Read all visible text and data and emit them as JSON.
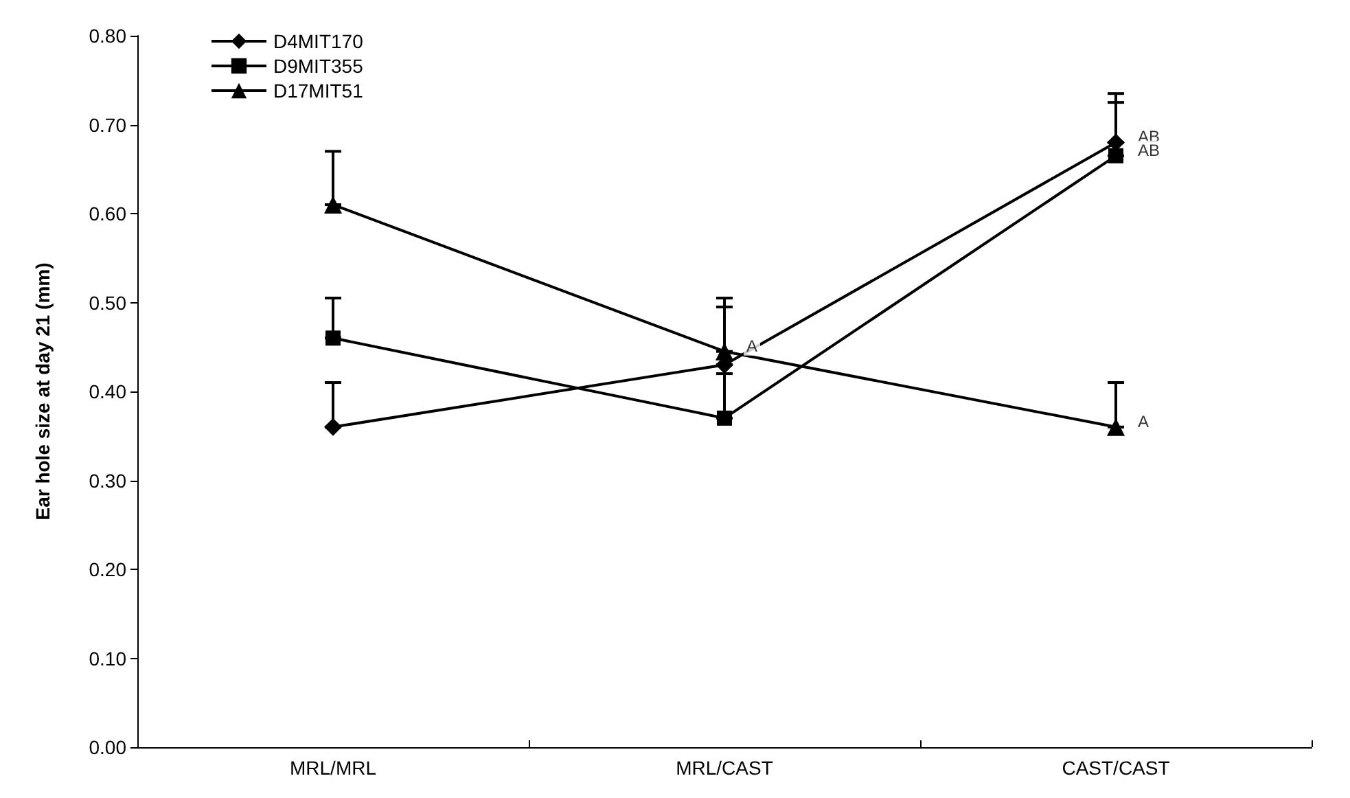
{
  "chart_data": {
    "type": "line",
    "ylabel": "Ear hole size at day 21 (mm)",
    "categories": [
      "MRL/MRL",
      "MRL/CAST",
      "CAST/CAST"
    ],
    "series": [
      {
        "name": "D4MIT170",
        "color": "#000000",
        "marker": "diamond",
        "values": [
          0.36,
          0.43,
          0.68
        ],
        "errors": [
          [
            0.36,
            0.41
          ],
          [
            0.43,
            0.495
          ],
          [
            0.68,
            0.735
          ]
        ]
      },
      {
        "name": "D9MIT355",
        "color": "#000000",
        "marker": "square",
        "values": [
          0.46,
          0.37,
          0.665
        ],
        "errors": [
          [
            0.46,
            0.505
          ],
          [
            0.37,
            0.42
          ],
          [
            0.665,
            0.725
          ]
        ]
      },
      {
        "name": "D17MIT51",
        "color": "#000000",
        "marker": "triangle",
        "values": [
          0.61,
          0.445,
          0.36
        ],
        "errors": [
          [
            0.61,
            0.67
          ],
          [
            0.445,
            0.505
          ],
          [
            0.36,
            0.41
          ]
        ]
      }
    ],
    "annotations": [
      {
        "text": "A",
        "x": "MRL/CAST",
        "y": 0.445
      },
      {
        "text": "AB",
        "x": "CAST/CAST",
        "y": 0.68
      },
      {
        "text": "AB",
        "x": "CAST/CAST",
        "y": 0.665
      },
      {
        "text": "A",
        "x": "CAST/CAST",
        "y": 0.36
      }
    ],
    "ylim": [
      0,
      0.8
    ],
    "yticks": [
      {
        "value": 0,
        "label": "0.00"
      },
      {
        "value": 0.1,
        "label": "0.10"
      },
      {
        "value": 0.2,
        "label": "0.20"
      },
      {
        "value": 0.3,
        "label": "0.30"
      },
      {
        "value": 0.4,
        "label": "0.40"
      },
      {
        "value": 0.5,
        "label": "0.50"
      },
      {
        "value": 0.6,
        "label": "0.60"
      },
      {
        "value": 0.7,
        "label": "0.70"
      },
      {
        "value": 0.8,
        "label": "0.80"
      }
    ],
    "grid": false,
    "legend": "top left",
    "line_style": "solid"
  }
}
